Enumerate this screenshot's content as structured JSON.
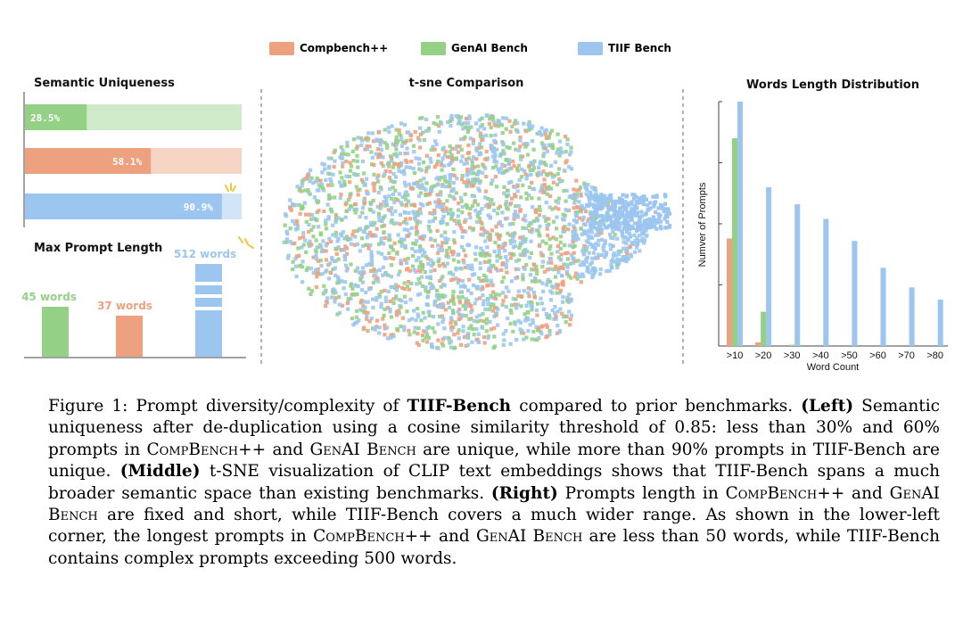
{
  "colors": {
    "compbench": "#eea17f",
    "genai": "#94d187",
    "tiif": "#9cc6ef"
  },
  "legend": [
    {
      "label": "Compbench++",
      "color_key": "compbench"
    },
    {
      "label": "GenAI Bench",
      "color_key": "genai"
    },
    {
      "label": "TIIF Bench",
      "color_key": "tiif"
    }
  ],
  "chart_data": [
    {
      "type": "bar",
      "title": "Semantic Uniqueness",
      "orientation": "horizontal",
      "series": [
        {
          "legend_key": "genai",
          "value": 28.5,
          "label": "28.5%"
        },
        {
          "legend_key": "compbench",
          "value": 58.1,
          "label": "58.1%"
        },
        {
          "legend_key": "tiif",
          "value": 90.9,
          "label": "90.9%"
        }
      ],
      "xlim": [
        0,
        100
      ]
    },
    {
      "type": "bar",
      "title": "Max Prompt Length",
      "series": [
        {
          "legend_key": "genai",
          "value": 45,
          "label": "45 words"
        },
        {
          "legend_key": "compbench",
          "value": 37,
          "label": "37 words"
        },
        {
          "legend_key": "tiif",
          "value": 512,
          "label": "512 words"
        }
      ]
    },
    {
      "type": "scatter",
      "title": "t-sne Comparison",
      "series": [
        "compbench",
        "genai",
        "tiif"
      ]
    },
    {
      "type": "bar",
      "title": "Words Length Distribution",
      "xlabel": "Word Count",
      "ylabel": "Numver of Prompts",
      "categories": [
        ">10",
        ">20",
        ">30",
        ">40",
        ">50",
        ">60",
        ">70",
        ">80"
      ],
      "series": [
        {
          "legend_key": "compbench",
          "values": [
            44,
            1.5,
            0,
            0,
            0,
            0,
            0,
            0
          ]
        },
        {
          "legend_key": "genai",
          "values": [
            85,
            14,
            0.5,
            0,
            0,
            0,
            0,
            0
          ]
        },
        {
          "legend_key": "tiif",
          "values": [
            100,
            65,
            58,
            52,
            43,
            32,
            24,
            19
          ]
        }
      ]
    }
  ],
  "caption": {
    "fig_label": "Figure 1:",
    "intro": "Prompt diversity/complexity of",
    "bench": "TIIF-Bench",
    "intro_end": "compared to prior benchmarks.",
    "left_tag": "(Left)",
    "left_text_1": "Semantic uniqueness after de-duplication using a cosine similarity threshold of 0.85: less than 30% and 60% prompts in",
    "compbench": "CompBench++",
    "and1": "and",
    "genai": "GenAI Bench",
    "left_text_2": "are unique, while more than 90% prompts in TIIF-Bench are unique.",
    "middle_tag": "(Middle)",
    "middle_text": "t-SNE visualization of CLIP text embeddings shows that TIIF-Bench spans a much broader semantic space than existing benchmarks.",
    "right_tag": "(Right)",
    "right_text_1": "Prompts length in",
    "and2": "and",
    "right_text_2": "are fixed and short, while TIIF-Bench covers a much wider range. As shown in the lower-left corner, the longest prompts in",
    "and3": "and",
    "right_text_3": "are less than 50 words, while TIIF-Bench contains complex prompts exceeding 500 words."
  }
}
